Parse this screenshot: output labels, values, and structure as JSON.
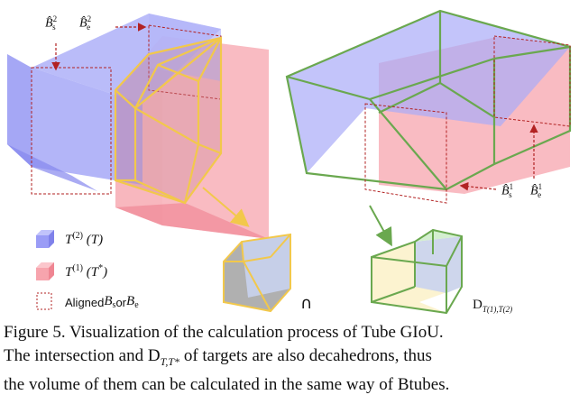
{
  "labels": {
    "bs2": "B̂",
    "bs2_sup": "2",
    "bs2_sub": "s",
    "be2": "B̂",
    "be2_sup": "2",
    "be2_sub": "e",
    "bs1": "B̂",
    "bs1_sup": "1",
    "bs1_sub": "s",
    "be1": "B̂",
    "be1_sup": "1",
    "be1_sub": "e"
  },
  "legend": {
    "item1_main": "T",
    "item1_sup": "(2)",
    "item1_paren": "(T)",
    "item2_main": "T",
    "item2_sup": "(1)",
    "item2_paren": "(T",
    "item2_star": "*",
    "item2_close": ")",
    "item3_prefix": "Aligned ",
    "item3_b": "B",
    "item3_s": "s",
    "item3_or": " or ",
    "item3_b2": "B",
    "item3_e": "e"
  },
  "operator": "∩",
  "dlabel": {
    "main": "D",
    "sub": "T(1),T(2)"
  },
  "colors": {
    "blue": "#9a9cf6",
    "pink": "#f7a4ad",
    "green": "#6aa84f",
    "yellow": "#f2c84b",
    "dashed_red": "#b22222"
  },
  "caption": {
    "line1": "Figure 5. Visualization of the calculation process of Tube GIoU.",
    "line2": "The intersection and D",
    "line2_sub": "T,T*",
    "line2_rest": " of targets are also decahedrons, thus",
    "line3": "the volume of them can be calculated in the same way of Btubes."
  }
}
